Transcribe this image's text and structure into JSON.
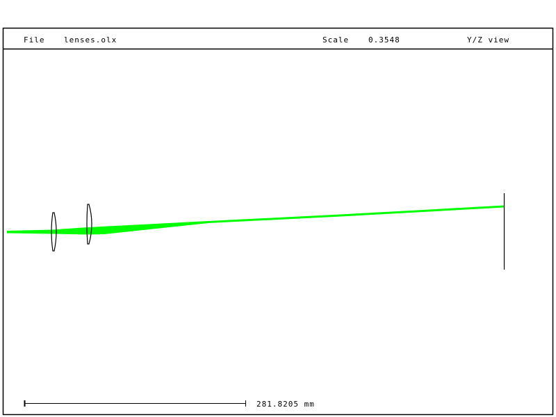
{
  "header": {
    "file_label": "File",
    "file_name": "lenses.olx",
    "scale_label": "Scale",
    "scale_value": "0.3548",
    "view_label": "Y/Z view"
  },
  "scale_bar": {
    "length_label": "281.8205 mm"
  },
  "colors": {
    "ray": "#00ff00",
    "lens": "#000000",
    "frame": "#000000",
    "background": "#ffffff"
  }
}
